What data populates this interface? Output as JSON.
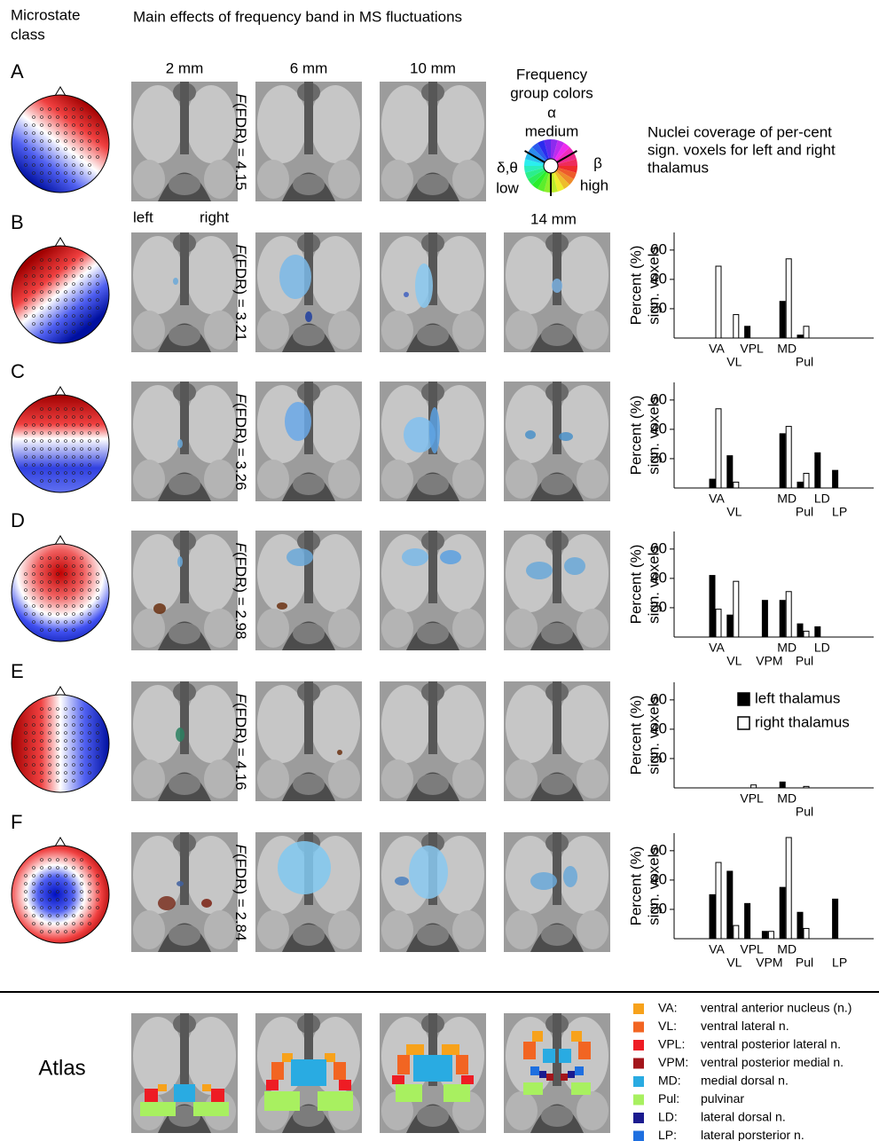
{
  "figure": {
    "class_header": [
      "Microstate",
      "class"
    ],
    "title": "Main effects of frequency band in MS fluctuations",
    "depths": [
      "2 mm",
      "6 mm",
      "10 mm",
      "14 mm"
    ],
    "hemispheres": [
      "left",
      "right"
    ],
    "frequency_legend": {
      "title": [
        "Frequency",
        "group colors"
      ],
      "alpha": "α",
      "alpha_label": "medium",
      "low_symbol": "δ,θ",
      "low_label": "low",
      "beta": "β",
      "beta_label": "high"
    },
    "coverage_title": [
      "Nuclei coverage of per-cent",
      "sign. voxels for left and right",
      "thalamus"
    ],
    "rows": [
      {
        "label": "A",
        "stat_symbol": "F",
        "stat_text": "(FDR) = 4.15"
      },
      {
        "label": "B",
        "stat_symbol": "F",
        "stat_text": "(FDR) = 3.21"
      },
      {
        "label": "C",
        "stat_symbol": "F",
        "stat_text": "(FDR) = 3.26"
      },
      {
        "label": "D",
        "stat_symbol": "F",
        "stat_text": "(FDR) = 2.98"
      },
      {
        "label": "E",
        "stat_symbol": "F",
        "stat_text": "(FDR) = 4.16"
      },
      {
        "label": "F",
        "stat_symbol": "F",
        "stat_text": "(FDR) = 2.84"
      }
    ],
    "atlas": {
      "label": "Atlas",
      "nuclei": [
        {
          "abbr": "VA:",
          "name": "ventral anterior nucleus (n.)",
          "color": "#f7a21b"
        },
        {
          "abbr": "VL:",
          "name": "ventral lateral n.",
          "color": "#f26522"
        },
        {
          "abbr": "VPL:",
          "name": "ventral posterior lateral n.",
          "color": "#ee1c24"
        },
        {
          "abbr": "VPM:",
          "name": "ventral posterior medial n.",
          "color": "#a3151b"
        },
        {
          "abbr": "MD:",
          "name": "medial dorsal n.",
          "color": "#29abe2"
        },
        {
          "abbr": "Pul:",
          "name": "pulvinar",
          "color": "#a8f060"
        },
        {
          "abbr": "LD:",
          "name": "lateral dorsal n.",
          "color": "#1b1b8f"
        },
        {
          "abbr": "LP:",
          "name": "lateral porsterior n.",
          "color": "#1e6fe0"
        }
      ]
    }
  },
  "chart_data": [
    {
      "type": "bar",
      "y_label": [
        "Percent (%)",
        "sign. voxels"
      ],
      "categories": [
        "VA",
        "VL",
        "VPL",
        null,
        "MD",
        "Pul",
        null,
        null
      ],
      "series": [
        {
          "color": "#000000",
          "values": [
            0,
            0,
            8,
            0,
            25,
            2,
            0,
            0
          ]
        },
        {
          "color": "#ffffff",
          "values": [
            49,
            16,
            0,
            0,
            54,
            8,
            0,
            0
          ]
        }
      ],
      "ylim": [
        0,
        72
      ],
      "yticks": [
        20,
        40,
        60
      ]
    },
    {
      "type": "bar",
      "y_label": [
        "Percent (%)",
        "sign. voxels"
      ],
      "categories": [
        "VA",
        "VL",
        null,
        null,
        "MD",
        "Pul",
        "LD",
        "LP"
      ],
      "series": [
        {
          "color": "#000000",
          "values": [
            6,
            22,
            0,
            0,
            37,
            4,
            24,
            12
          ]
        },
        {
          "color": "#ffffff",
          "values": [
            54,
            4,
            0,
            0,
            42,
            10,
            0,
            0
          ]
        }
      ],
      "ylim": [
        0,
        72
      ],
      "yticks": [
        20,
        40,
        60
      ]
    },
    {
      "type": "bar",
      "y_label": [
        "Percent (%)",
        "sign. voxels"
      ],
      "categories": [
        "VA",
        "VL",
        null,
        "VPM",
        "MD",
        "Pul",
        "LD",
        null
      ],
      "series": [
        {
          "color": "#000000",
          "values": [
            42,
            15,
            0,
            25,
            25,
            9,
            7,
            0
          ]
        },
        {
          "color": "#ffffff",
          "values": [
            19,
            38,
            0,
            0,
            31,
            4,
            0,
            0
          ]
        }
      ],
      "ylim": [
        0,
        72
      ],
      "yticks": [
        20,
        40,
        60
      ]
    },
    {
      "type": "bar",
      "y_label": [
        "Percent (%)",
        "sign. voxels"
      ],
      "categories": [
        null,
        null,
        "VPL",
        null,
        "MD",
        "Pul",
        null,
        null
      ],
      "series": [
        {
          "name": "left thalamus",
          "color": "#000000",
          "values": [
            0,
            0,
            0,
            0,
            4,
            0,
            0,
            0
          ]
        },
        {
          "name": "right thalamus",
          "color": "#ffffff",
          "values": [
            0,
            0,
            2,
            0,
            0,
            1,
            0,
            0
          ]
        }
      ],
      "ylim": [
        0,
        72
      ],
      "yticks": [
        20,
        40,
        60
      ]
    },
    {
      "type": "bar",
      "y_label": [
        "Percent (%)",
        "sign. voxels"
      ],
      "categories": [
        "VA",
        "VL",
        "VPL",
        "VPM",
        "MD",
        "Pul",
        null,
        "LP"
      ],
      "series": [
        {
          "color": "#000000",
          "values": [
            30,
            46,
            24,
            5,
            35,
            18,
            0,
            27
          ]
        },
        {
          "color": "#ffffff",
          "values": [
            52,
            9,
            0,
            5,
            69,
            7,
            0,
            0
          ]
        }
      ],
      "ylim": [
        0,
        72
      ],
      "yticks": [
        20,
        40,
        60
      ]
    }
  ]
}
